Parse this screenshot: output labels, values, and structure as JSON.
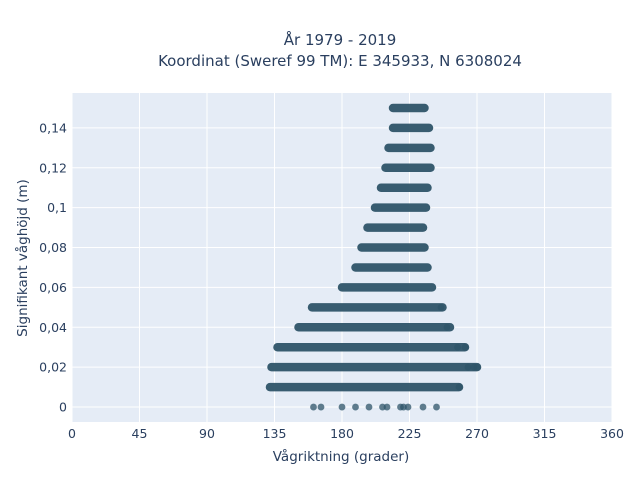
{
  "chart_data": {
    "type": "scatter",
    "title_line1": "År 1979 - 2019",
    "title_line2": "Koordinat (Sweref 99 TM): E 345933, N 6308024",
    "xlabel": "Vågriktning (grader)",
    "ylabel": "Signifikant våghöjd (m)",
    "xlim": [
      0,
      360
    ],
    "ylim": [
      -0.0075,
      0.1575
    ],
    "xticks": [
      0,
      45,
      90,
      135,
      180,
      225,
      270,
      315,
      360
    ],
    "xtick_labels": [
      "0",
      "45",
      "90",
      "135",
      "180",
      "225",
      "270",
      "315",
      "360"
    ],
    "yticks": [
      0,
      0.02,
      0.04,
      0.06,
      0.08,
      0.1,
      0.12,
      0.14
    ],
    "ytick_labels": [
      "0",
      "0,02",
      "0,04",
      "0,06",
      "0,08",
      "0,1",
      "0,12",
      "0,14"
    ],
    "grid": true,
    "colors": {
      "background": "#E5ECF6",
      "grid": "#ffffff",
      "marker": "#2E5468",
      "text": "#2a3f5f"
    },
    "bands": [
      {
        "y": 0.01,
        "x_min": 132,
        "x_max": 258
      },
      {
        "y": 0.02,
        "x_min": 133,
        "x_max": 270
      },
      {
        "y": 0.03,
        "x_min": 137,
        "x_max": 262
      },
      {
        "y": 0.04,
        "x_min": 151,
        "x_max": 252
      },
      {
        "y": 0.05,
        "x_min": 160,
        "x_max": 247
      },
      {
        "y": 0.06,
        "x_min": 180,
        "x_max": 240
      },
      {
        "y": 0.07,
        "x_min": 189,
        "x_max": 237
      },
      {
        "y": 0.08,
        "x_min": 193,
        "x_max": 235
      },
      {
        "y": 0.09,
        "x_min": 197,
        "x_max": 234
      },
      {
        "y": 0.1,
        "x_min": 202,
        "x_max": 236
      },
      {
        "y": 0.11,
        "x_min": 206,
        "x_max": 237
      },
      {
        "y": 0.12,
        "x_min": 209,
        "x_max": 239
      },
      {
        "y": 0.13,
        "x_min": 211,
        "x_max": 239
      },
      {
        "y": 0.14,
        "x_min": 214,
        "x_max": 238
      },
      {
        "y": 0.15,
        "x_min": 214,
        "x_max": 235
      }
    ],
    "points": [
      {
        "x": 161,
        "y": 0
      },
      {
        "x": 166,
        "y": 0
      },
      {
        "x": 180,
        "y": 0
      },
      {
        "x": 189,
        "y": 0
      },
      {
        "x": 198,
        "y": 0
      },
      {
        "x": 207,
        "y": 0
      },
      {
        "x": 210,
        "y": 0
      },
      {
        "x": 219,
        "y": 0
      },
      {
        "x": 221,
        "y": 0
      },
      {
        "x": 224,
        "y": 0
      },
      {
        "x": 234,
        "y": 0
      },
      {
        "x": 243,
        "y": 0
      },
      {
        "x": 257,
        "y": 0.03
      },
      {
        "x": 262,
        "y": 0.03
      },
      {
        "x": 264,
        "y": 0.02
      },
      {
        "x": 268,
        "y": 0.02
      },
      {
        "x": 270,
        "y": 0.02
      },
      {
        "x": 258,
        "y": 0.01
      },
      {
        "x": 246,
        "y": 0.05
      },
      {
        "x": 250,
        "y": 0.04
      }
    ]
  }
}
